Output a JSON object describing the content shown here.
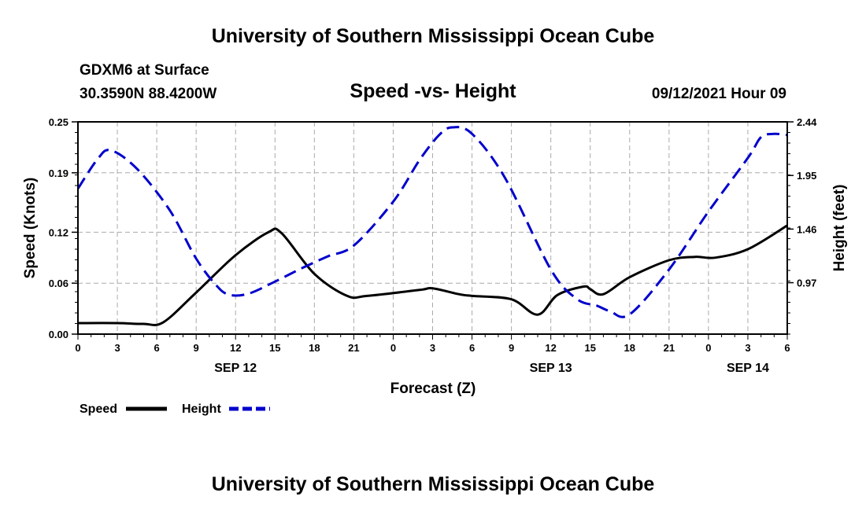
{
  "header": {
    "title_top": "University of Southern Mississippi Ocean Cube",
    "station": "GDXM6 at Surface",
    "coords": "30.3590N  88.4200W",
    "subtitle": "Speed -vs- Height",
    "datetime": "09/12/2021 Hour 09"
  },
  "footer": {
    "title_bottom": "University of Southern Mississippi Ocean Cube"
  },
  "legend": {
    "speed_label": "Speed",
    "height_label": "Height"
  },
  "colors": {
    "speed": "#000000",
    "height": "#0000cc",
    "grid": "#aaaaaa"
  },
  "chart_data": {
    "type": "line",
    "title": "Speed -vs- Height",
    "xlabel": "Forecast (Z)",
    "ylabel": "Speed (Knots)",
    "y2label": "Height (feet)",
    "xlim": [
      0,
      54
    ],
    "ylim": [
      0,
      0.25
    ],
    "y2lim": [
      0.5,
      2.44
    ],
    "x_ticks": [
      0,
      3,
      6,
      9,
      12,
      15,
      18,
      21,
      24,
      27,
      30,
      33,
      36,
      39,
      42,
      45,
      48,
      51,
      54
    ],
    "x_tick_labels": [
      "0",
      "3",
      "6",
      "9",
      "12",
      "15",
      "18",
      "21",
      "0",
      "3",
      "6",
      "9",
      "12",
      "15",
      "18",
      "21",
      "0",
      "3",
      "6"
    ],
    "date_labels": [
      {
        "x": 12,
        "label": "SEP 12"
      },
      {
        "x": 36,
        "label": "SEP 13"
      },
      {
        "x": 51,
        "label": "SEP 14"
      }
    ],
    "y_ticks": [
      0.0,
      0.06,
      0.12,
      0.19,
      0.25
    ],
    "y_tick_labels": [
      "0.00",
      "0.06",
      "0.12",
      "0.19",
      "0.25"
    ],
    "y2_ticks": [
      0.97,
      1.46,
      1.95,
      2.44
    ],
    "y2_tick_labels": [
      "0.97",
      "1.46",
      "1.95",
      "2.44"
    ],
    "grid": true,
    "legend_position": "bottom-left",
    "series": [
      {
        "name": "Speed",
        "axis": "left",
        "style": "solid",
        "x": [
          0,
          3,
          5,
          6.5,
          9,
          12,
          14.5,
          15.5,
          18,
          20.5,
          22,
          26,
          27,
          29,
          30,
          33,
          35,
          36.5,
          38.5,
          39,
          40,
          42,
          45,
          47,
          48.5,
          51,
          54
        ],
        "y": [
          0.013,
          0.013,
          0.012,
          0.014,
          0.049,
          0.093,
          0.12,
          0.119,
          0.071,
          0.045,
          0.045,
          0.052,
          0.054,
          0.047,
          0.045,
          0.041,
          0.023,
          0.046,
          0.056,
          0.053,
          0.047,
          0.067,
          0.087,
          0.091,
          0.09,
          0.1,
          0.128
        ]
      },
      {
        "name": "Height",
        "axis": "right",
        "style": "dashed",
        "x": [
          0,
          1.5,
          2.5,
          4.5,
          7,
          9,
          10.5,
          11.5,
          13,
          15,
          17,
          19,
          21,
          24,
          26,
          27.5,
          28.5,
          30,
          32.5,
          36,
          38,
          39.5,
          40.5,
          42,
          45,
          48,
          51,
          52,
          53,
          54
        ],
        "y": [
          1.83,
          2.1,
          2.18,
          2.01,
          1.63,
          1.19,
          0.95,
          0.86,
          0.87,
          0.98,
          1.1,
          1.21,
          1.31,
          1.71,
          2.09,
          2.32,
          2.39,
          2.33,
          1.93,
          1.09,
          0.82,
          0.76,
          0.71,
          0.68,
          1.09,
          1.62,
          2.11,
          2.3,
          2.33,
          2.32
        ]
      }
    ]
  }
}
